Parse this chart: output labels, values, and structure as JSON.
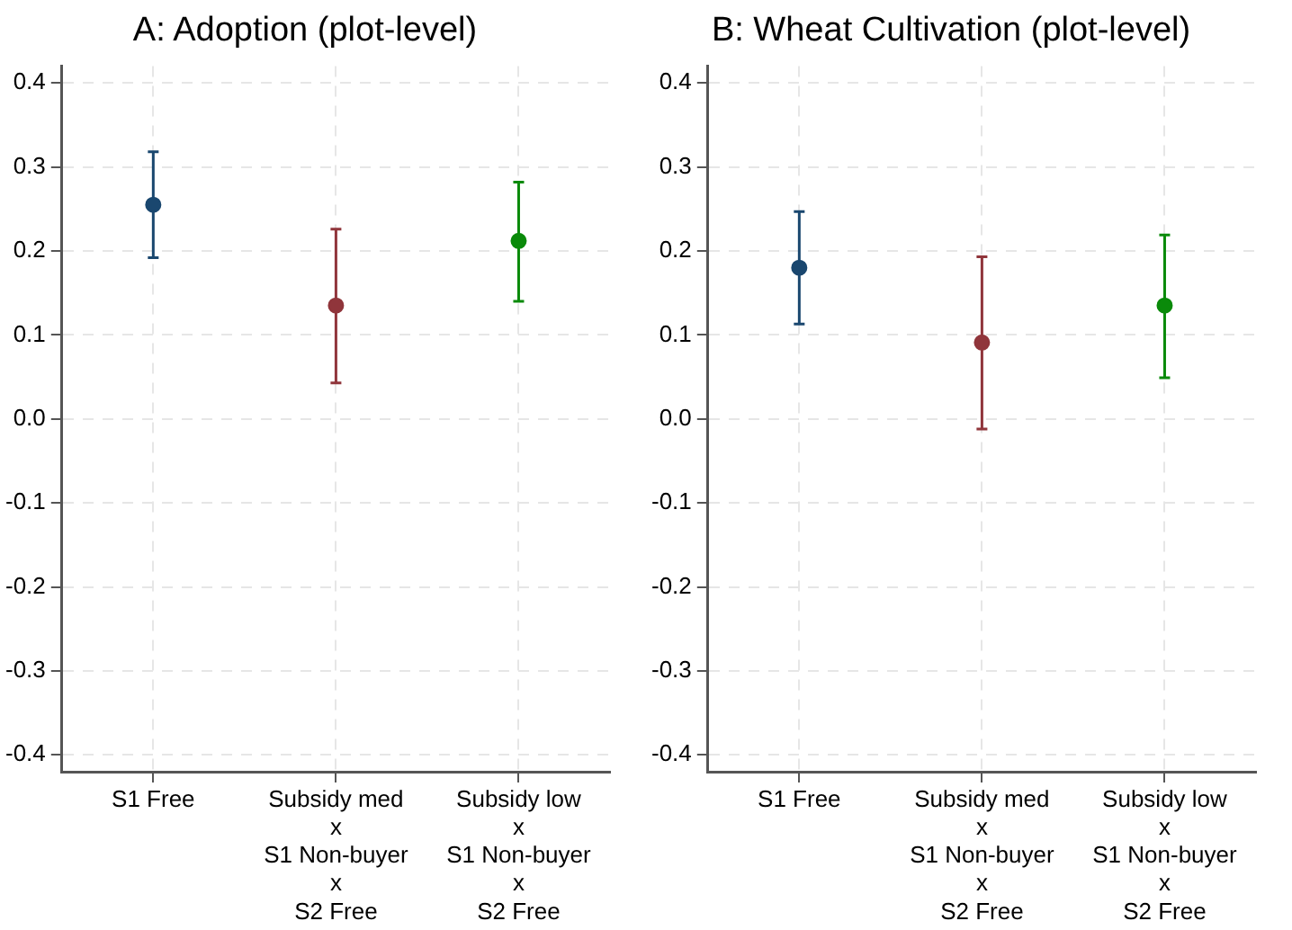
{
  "chart_data": [
    {
      "type": "scatter",
      "title": "A: Adoption (plot-level)",
      "categories": [
        "S1 Free",
        "Subsidy med\nx\nS1 Non-buyer\nx\nS2 Free",
        "Subsidy low\nx\nS1 Non-buyer\nx\nS2 Free"
      ],
      "values": [
        0.255,
        0.135,
        0.212
      ],
      "colors": [
        "#1a476f",
        "#90353b",
        "#0a8a0a"
      ],
      "errors": [
        [
          0.192,
          0.318
        ],
        [
          0.043,
          0.226
        ],
        [
          0.14,
          0.282
        ]
      ],
      "ylim": [
        -0.42,
        0.42
      ],
      "yticks": [
        {
          "value": -0.4,
          "label": "-0.4"
        },
        {
          "value": -0.3,
          "label": "-0.3"
        },
        {
          "value": -0.2,
          "label": "-0.2"
        },
        {
          "value": -0.1,
          "label": "-0.1"
        },
        {
          "value": 0,
          "label": "0.0"
        },
        {
          "value": 0.1,
          "label": "0.1"
        },
        {
          "value": 0.2,
          "label": "0.2"
        },
        {
          "value": 0.3,
          "label": "0.3"
        },
        {
          "value": 0.4,
          "label": "0.4"
        }
      ],
      "grid": true,
      "marker": "circle",
      "legend": false
    },
    {
      "type": "scatter",
      "title": "B: Wheat Cultivation (plot-level)",
      "categories": [
        "S1 Free",
        "Subsidy med\nx\nS1 Non-buyer\nx\nS2 Free",
        "Subsidy low\nx\nS1 Non-buyer\nx\nS2 Free"
      ],
      "values": [
        0.18,
        0.091,
        0.135
      ],
      "colors": [
        "#1a476f",
        "#90353b",
        "#0a8a0a"
      ],
      "errors": [
        [
          0.113,
          0.247
        ],
        [
          -0.012,
          0.193
        ],
        [
          0.049,
          0.219
        ]
      ],
      "ylim": [
        -0.42,
        0.42
      ],
      "yticks": [
        {
          "value": -0.4,
          "label": "-0.4"
        },
        {
          "value": -0.3,
          "label": "-0.3"
        },
        {
          "value": -0.2,
          "label": "-0.2"
        },
        {
          "value": -0.1,
          "label": "-0.1"
        },
        {
          "value": 0,
          "label": "0.0"
        },
        {
          "value": 0.1,
          "label": "0.1"
        },
        {
          "value": 0.2,
          "label": "0.2"
        },
        {
          "value": 0.3,
          "label": "0.3"
        },
        {
          "value": 0.4,
          "label": "0.4"
        }
      ],
      "grid": true,
      "marker": "circle",
      "legend": false
    }
  ]
}
